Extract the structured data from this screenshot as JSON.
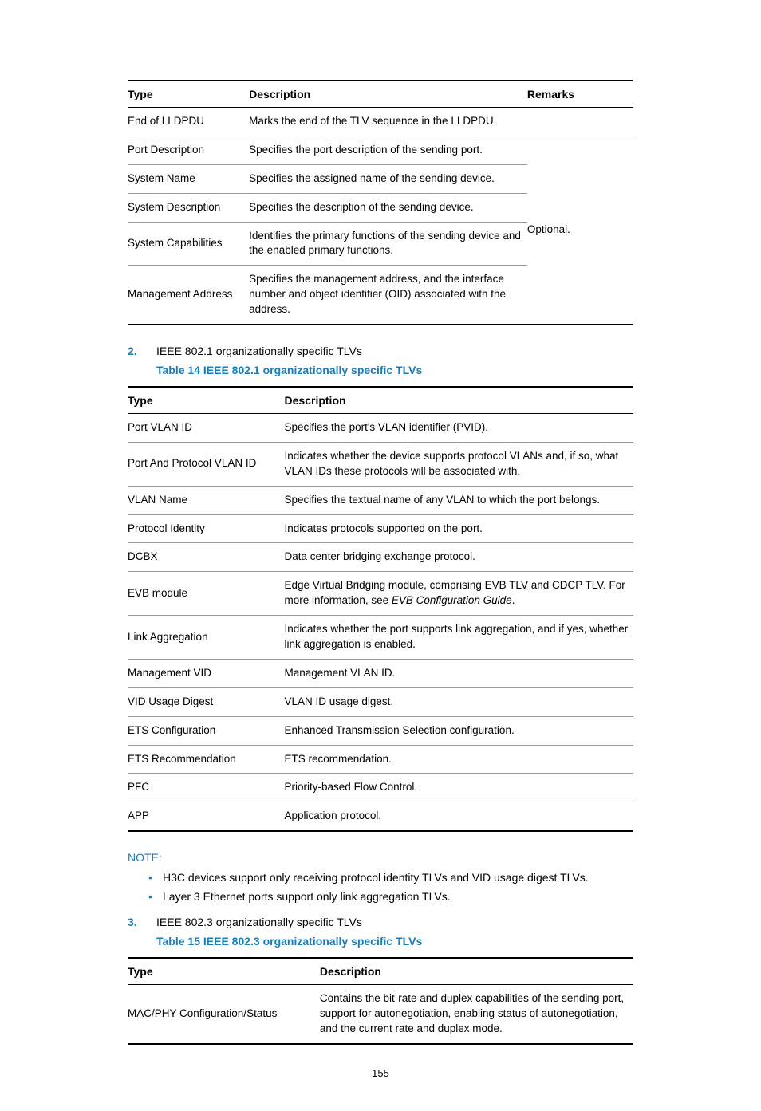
{
  "table1": {
    "headers": [
      "Type",
      "Description",
      "Remarks"
    ],
    "rows": [
      {
        "type": "End of LLDPDU",
        "desc": "Marks the end of the TLV sequence in the LLDPDU."
      },
      {
        "type": "Port Description",
        "desc": "Specifies the port description of the sending port."
      },
      {
        "type": "System Name",
        "desc": "Specifies the assigned name of the sending device."
      },
      {
        "type": "System Description",
        "desc": "Specifies the description of the sending device."
      },
      {
        "type": "System Capabilities",
        "desc": "Identifies the primary functions of the sending device and the enabled primary functions."
      },
      {
        "type": "Management Address",
        "desc": "Specifies the management address, and the interface number and object identifier (OID) associated with the address."
      }
    ],
    "remarks": "Optional.",
    "col_widths": [
      "24%",
      "55%",
      "21%"
    ]
  },
  "item2": {
    "num": "2.",
    "text": "IEEE 802.1 organizationally specific TLVs",
    "caption": "Table 14 IEEE 802.1 organizationally specific TLVs"
  },
  "table2": {
    "headers": [
      "Type",
      "Description"
    ],
    "rows": [
      {
        "type": "Port VLAN ID",
        "desc": "Specifies the port's VLAN identifier (PVID)."
      },
      {
        "type": "Port And Protocol VLAN ID",
        "desc": "Indicates whether the device supports protocol VLANs and, if so, what VLAN IDs these protocols will be associated with."
      },
      {
        "type": "VLAN Name",
        "desc": "Specifies the textual name of any VLAN to which the port belongs."
      },
      {
        "type": "Protocol Identity",
        "desc": "Indicates protocols supported on the port."
      },
      {
        "type": "DCBX",
        "desc": "Data center bridging exchange protocol."
      },
      {
        "type": "EVB module",
        "desc": "Edge Virtual Bridging module, comprising EVB TLV and CDCP TLV. For more information, see ",
        "desc_italic": "EVB Configuration Guide",
        "desc_after": "."
      },
      {
        "type": "Link Aggregation",
        "desc": "Indicates whether the port supports link aggregation, and if yes, whether link aggregation is enabled."
      },
      {
        "type": "Management VID",
        "desc": "Management VLAN ID."
      },
      {
        "type": "VID Usage Digest",
        "desc": "VLAN ID usage digest."
      },
      {
        "type": "ETS Configuration",
        "desc": "Enhanced Transmission Selection configuration."
      },
      {
        "type": "ETS Recommendation",
        "desc": "ETS recommendation."
      },
      {
        "type": "PFC",
        "desc": "Priority-based Flow Control."
      },
      {
        "type": "APP",
        "desc": "Application protocol."
      }
    ],
    "col_widths": [
      "31%",
      "69%"
    ]
  },
  "note": {
    "label": "NOTE:",
    "bullets": [
      "H3C devices support only receiving protocol identity TLVs and VID usage digest TLVs.",
      "Layer 3 Ethernet ports support only link aggregation TLVs."
    ]
  },
  "item3": {
    "num": "3.",
    "text": "IEEE 802.3 organizationally specific TLVs",
    "caption": "Table 15 IEEE 802.3 organizationally specific TLVs"
  },
  "table3": {
    "headers": [
      "Type",
      "Description"
    ],
    "rows": [
      {
        "type": "MAC/PHY Configuration/Status",
        "desc": "Contains the bit-rate and duplex capabilities of the sending port, support for autonegotiation, enabling status of autonegotiation, and the current rate and duplex mode."
      }
    ],
    "col_widths": [
      "38%",
      "62%"
    ]
  },
  "page_number": "155",
  "colors": {
    "accent": "#1a7db6"
  }
}
